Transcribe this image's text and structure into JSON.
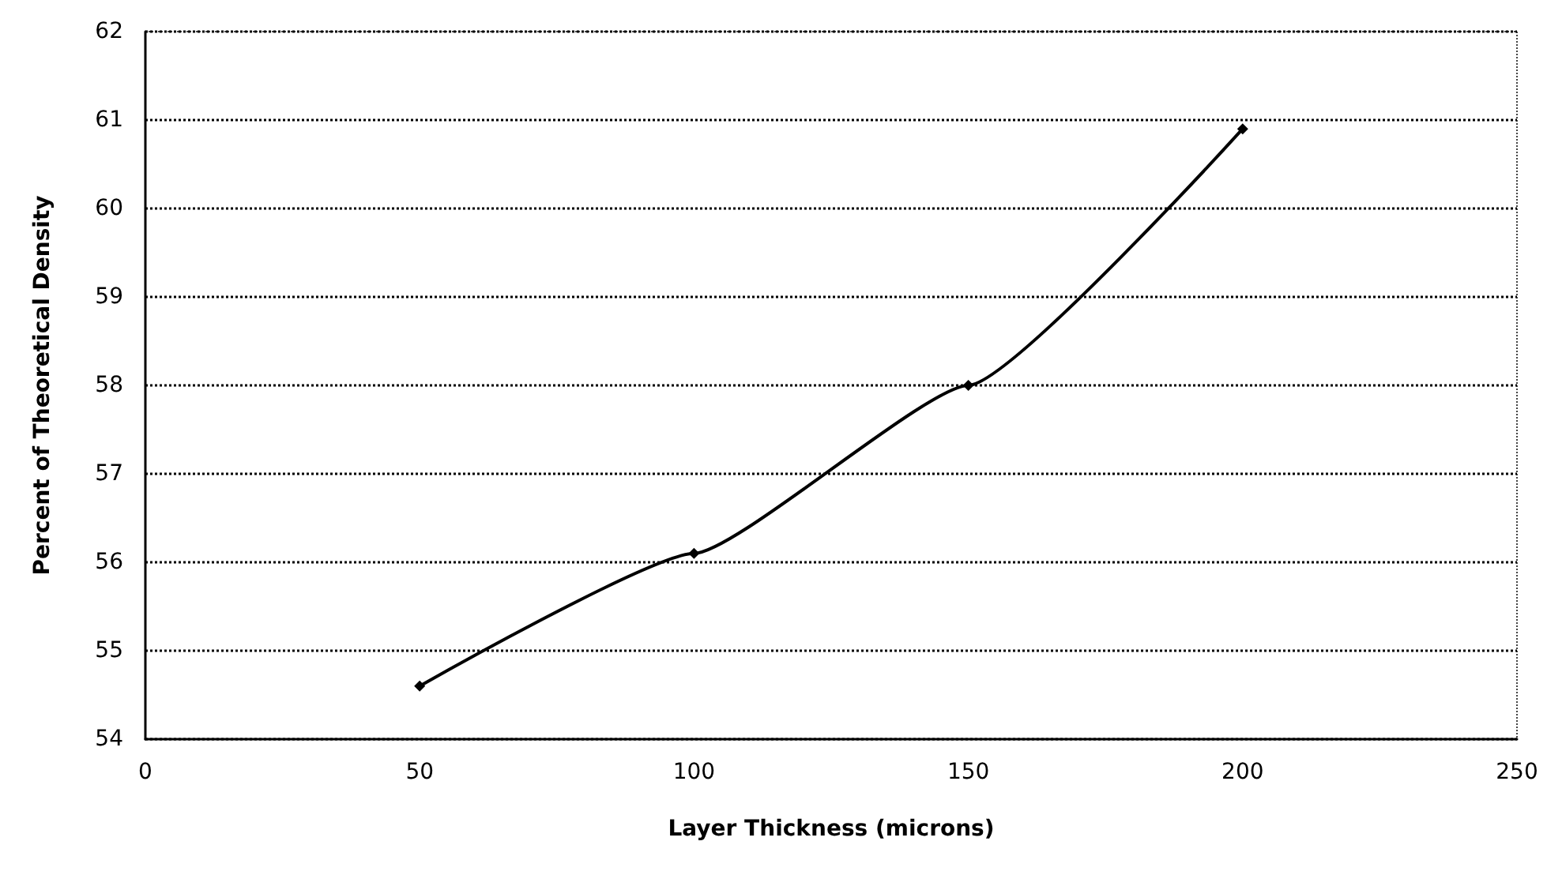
{
  "chart_data": {
    "type": "line",
    "xlabel": "Layer Thickness (microns)",
    "ylabel": "Percent of Theoretical Density",
    "x": [
      50,
      100,
      150,
      200
    ],
    "series": [
      {
        "color": "#000000",
        "values": [
          54.6,
          56.1,
          58.0,
          60.9
        ]
      }
    ],
    "xlim": [
      0,
      250
    ],
    "xticks": [
      0,
      50,
      100,
      150,
      200,
      250
    ],
    "ylim": [
      54,
      62
    ],
    "yticks": [
      54,
      55,
      56,
      57,
      58,
      59,
      60,
      61,
      62
    ],
    "grid": "y",
    "marker": "diamond",
    "line_style": "solid"
  }
}
